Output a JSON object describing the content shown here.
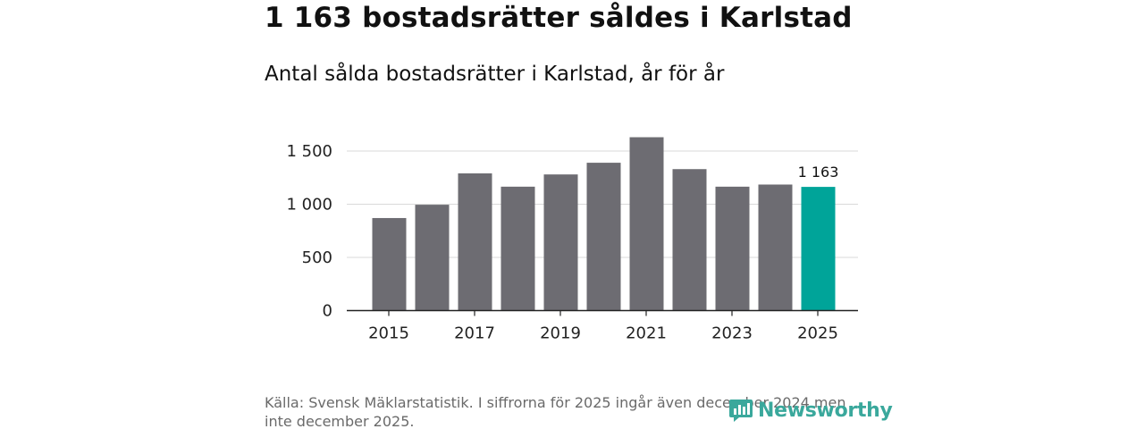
{
  "header": {
    "title": "1 163 bostadsrätter såldes i Karlstad",
    "subtitle": "Antal sålda bostadsrätter i Karlstad, år för år"
  },
  "footer": {
    "source": "Källa: Svensk Mäklarstatistik. I siffrorna för 2025 ingår även december 2024 men inte december 2025.",
    "logo_text": "Newsworthy"
  },
  "colors": {
    "bar": "#6d6c72",
    "highlight": "#00a499",
    "grid": "#d9d9d9",
    "axis": "#222222",
    "logo": "#3aa89c"
  },
  "chart_data": {
    "type": "bar",
    "title": "Antal sålda bostadsrätter i Karlstad, år för år",
    "xlabel": "",
    "ylabel": "",
    "categories": [
      "2015",
      "2016",
      "2017",
      "2018",
      "2019",
      "2020",
      "2021",
      "2022",
      "2023",
      "2024",
      "2025"
    ],
    "values": [
      870,
      995,
      1290,
      1165,
      1280,
      1390,
      1630,
      1330,
      1165,
      1185,
      1163
    ],
    "highlight_index": 10,
    "x_tick_labels": [
      "2015",
      "2017",
      "2019",
      "2021",
      "2023",
      "2025"
    ],
    "y_ticks": [
      0,
      500,
      1000,
      1500
    ],
    "y_tick_labels": [
      "0",
      "500",
      "1 000",
      "1 500"
    ],
    "ylim": [
      0,
      1650
    ],
    "grid": true,
    "annotation": "1 163"
  }
}
